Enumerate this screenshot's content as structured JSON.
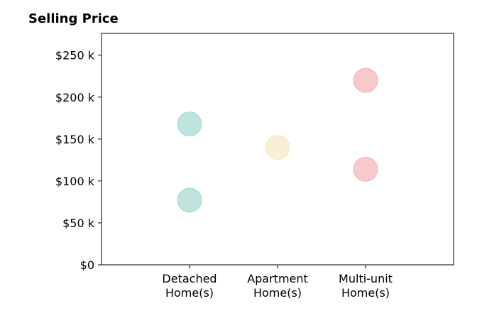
{
  "chart_data": {
    "type": "scatter",
    "title": "Selling Price",
    "xlabel": "",
    "ylabel": "",
    "categories": [
      [
        "Detached",
        "Home(s)"
      ],
      [
        "Apartment",
        "Home(s)"
      ],
      [
        "Multi-unit",
        "Home(s)"
      ]
    ],
    "points": [
      {
        "category": 0,
        "value": 168000,
        "color": "#7fc8c0"
      },
      {
        "category": 0,
        "value": 77000,
        "color": "#7fc8c0"
      },
      {
        "category": 1,
        "value": 140000,
        "color": "#f5deb0"
      },
      {
        "category": 2,
        "value": 220000,
        "color": "#f0919a"
      },
      {
        "category": 2,
        "value": 114000,
        "color": "#f0919a"
      }
    ],
    "y_ticks": [
      {
        "value": 0,
        "label": "$0"
      },
      {
        "value": 50000,
        "label": "$50 k"
      },
      {
        "value": 100000,
        "label": "$100 k"
      },
      {
        "value": 150000,
        "label": "$150 k"
      },
      {
        "value": 200000,
        "label": "$200 k"
      },
      {
        "value": 250000,
        "label": "$250 k"
      }
    ],
    "ylim": [
      0,
      276000
    ],
    "xlim": [
      -1,
      3
    ],
    "grid": false,
    "marker_opacity": 0.5
  }
}
